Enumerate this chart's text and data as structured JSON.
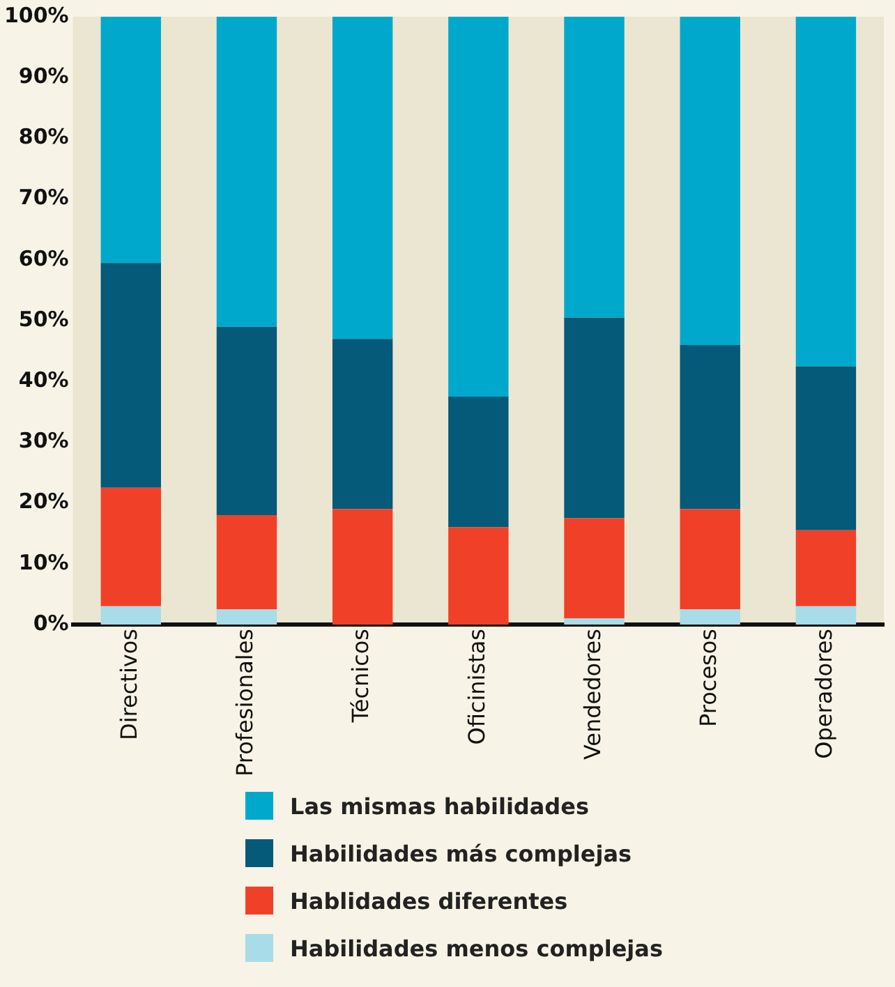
{
  "chart_data": {
    "type": "bar",
    "stacked": true,
    "categories": [
      "Directivos",
      "Profesionales",
      "Técnicos",
      "Oficinistas",
      "Vendedores",
      "Procesos",
      "Operadores"
    ],
    "series": [
      {
        "name": "Habilidades menos complejas",
        "color": "#a8dce8",
        "values": [
          3,
          2.5,
          0,
          0,
          1,
          2.5,
          3
        ]
      },
      {
        "name": "Hablidades diferentes",
        "color": "#f04128",
        "values": [
          19.5,
          15.5,
          19,
          16,
          16.5,
          16.5,
          12.5
        ]
      },
      {
        "name": "Habilidades más complejas",
        "color": "#045a78",
        "values": [
          37,
          31,
          28,
          21.5,
          33,
          27,
          27
        ]
      },
      {
        "name": "Las mismas habilidades",
        "color": "#00a9cc",
        "values": [
          40.5,
          51,
          53,
          62.5,
          49.5,
          54,
          57.5
        ]
      }
    ],
    "ylim": [
      0,
      100
    ],
    "yticks": [
      {
        "value": 0,
        "label": "0%"
      },
      {
        "value": 10,
        "label": "10%"
      },
      {
        "value": 20,
        "label": "20%"
      },
      {
        "value": 30,
        "label": "30%"
      },
      {
        "value": 40,
        "label": "40%"
      },
      {
        "value": 50,
        "label": "50%"
      },
      {
        "value": 60,
        "label": "60%"
      },
      {
        "value": 70,
        "label": "70%"
      },
      {
        "value": 80,
        "label": "80%"
      },
      {
        "value": 90,
        "label": "90%"
      },
      {
        "value": 100,
        "label": "100%"
      }
    ],
    "grid": false,
    "legend": "bottom"
  }
}
